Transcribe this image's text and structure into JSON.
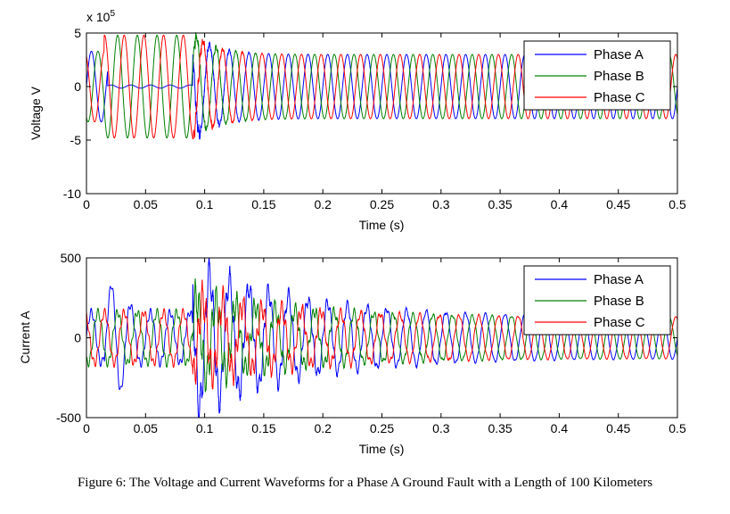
{
  "caption": "Figure 6: The Voltage and Current Waveforms for a Phase A Ground Fault with a Length of 100 Kilometers",
  "chart_data": [
    {
      "type": "line",
      "title": "",
      "xlabel": "Time (s)",
      "ylabel": "Voltage V",
      "y_multiplier": "x 10",
      "y_exponent": "5",
      "xlim": [
        0,
        0.5
      ],
      "ylim": [
        -10,
        5
      ],
      "xticks": [
        "0",
        "0.05",
        "0.1",
        "0.15",
        "0.2",
        "0.25",
        "0.3",
        "0.35",
        "0.4",
        "0.45",
        "0.5"
      ],
      "yticks": [
        "5",
        "0",
        "-5",
        "-10"
      ],
      "legend_position": "top-right",
      "fault_time_s": 0.09,
      "frequency_hz": 60,
      "series": [
        {
          "name": "Phase A",
          "color": "#0000ff",
          "prefault_amplitude": 3.3,
          "fault_amplitude": 0.15,
          "postfault_amplitude": 3.0,
          "phase_deg": 0
        },
        {
          "name": "Phase B",
          "color": "#008000",
          "prefault_amplitude": 3.3,
          "fault_amplitude": 4.8,
          "postfault_amplitude": 3.0,
          "phase_deg": -120
        },
        {
          "name": "Phase C",
          "color": "#ff0000",
          "prefault_amplitude": 3.3,
          "fault_amplitude": 4.8,
          "postfault_amplitude": 3.0,
          "phase_deg": 120
        }
      ]
    },
    {
      "type": "line",
      "title": "",
      "xlabel": "Time (s)",
      "ylabel": "Current A",
      "xlim": [
        0,
        0.5
      ],
      "ylim": [
        -500,
        500
      ],
      "xticks": [
        "0",
        "0.05",
        "0.1",
        "0.15",
        "0.2",
        "0.25",
        "0.3",
        "0.35",
        "0.4",
        "0.45",
        "0.5"
      ],
      "yticks": [
        "500",
        "0",
        "-500"
      ],
      "legend_position": "top-right",
      "fault_time_s": 0.09,
      "frequency_hz": 60,
      "series": [
        {
          "name": "Phase A",
          "color": "#0000ff",
          "prefault_amplitude": 160,
          "peak_amplitude": 450,
          "postfault_amplitude": 130,
          "phase_deg": 0
        },
        {
          "name": "Phase B",
          "color": "#008000",
          "prefault_amplitude": 160,
          "peak_amplitude": 250,
          "postfault_amplitude": 130,
          "phase_deg": -120
        },
        {
          "name": "Phase C",
          "color": "#ff0000",
          "prefault_amplitude": 160,
          "peak_amplitude": 250,
          "postfault_amplitude": 130,
          "phase_deg": 120
        }
      ]
    }
  ]
}
